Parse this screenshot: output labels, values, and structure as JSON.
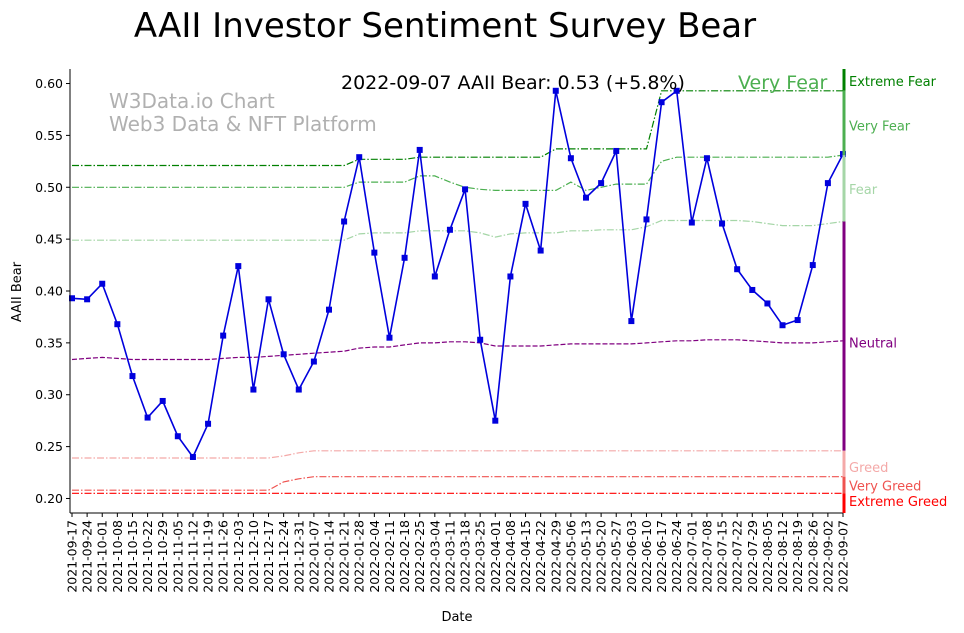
{
  "chart_data": {
    "type": "line",
    "title": "AAII Investor Sentiment Survey Bear",
    "xlabel": "Date",
    "ylabel": "AAII Bear",
    "ylim": [
      0.186,
      0.614
    ],
    "yticks": [
      "0.20",
      "0.25",
      "0.30",
      "0.35",
      "0.40",
      "0.45",
      "0.50",
      "0.55",
      "0.60"
    ],
    "watermark": [
      "W3Data.io Chart",
      "Web3 Data & NFT Platform"
    ],
    "annotation": {
      "text": "2022-09-07 AAII Bear: 0.53 (+5.8%)",
      "level": "Very Fear",
      "level_color": "#4caf50"
    },
    "x": [
      "2021-09-17",
      "2021-09-24",
      "2021-10-01",
      "2021-10-08",
      "2021-10-15",
      "2021-10-22",
      "2021-10-29",
      "2021-11-05",
      "2021-11-12",
      "2021-11-19",
      "2021-11-26",
      "2021-12-03",
      "2021-12-10",
      "2021-12-17",
      "2021-12-24",
      "2021-12-31",
      "2022-01-07",
      "2022-01-14",
      "2022-01-21",
      "2022-01-28",
      "2022-02-04",
      "2022-02-11",
      "2022-02-18",
      "2022-02-25",
      "2022-03-04",
      "2022-03-11",
      "2022-03-18",
      "2022-03-25",
      "2022-04-01",
      "2022-04-08",
      "2022-04-15",
      "2022-04-22",
      "2022-04-29",
      "2022-05-06",
      "2022-05-13",
      "2022-05-20",
      "2022-05-27",
      "2022-06-03",
      "2022-06-10",
      "2022-06-17",
      "2022-06-24",
      "2022-07-01",
      "2022-07-08",
      "2022-07-15",
      "2022-07-22",
      "2022-07-29",
      "2022-08-05",
      "2022-08-12",
      "2022-08-19",
      "2022-08-26",
      "2022-09-02",
      "2022-09-07"
    ],
    "series": [
      {
        "color": "#0000dd",
        "values": [
          0.393,
          0.392,
          0.407,
          0.368,
          0.318,
          0.278,
          0.294,
          0.26,
          0.24,
          0.272,
          0.357,
          0.424,
          0.305,
          0.392,
          0.339,
          0.305,
          0.332,
          0.382,
          0.467,
          0.529,
          0.437,
          0.355,
          0.432,
          0.536,
          0.414,
          0.459,
          0.498,
          0.353,
          0.275,
          0.414,
          0.484,
          0.439,
          0.593,
          0.528,
          0.49,
          0.504,
          0.535,
          0.371,
          0.469,
          0.582,
          0.593,
          0.466,
          0.528,
          0.465,
          0.421,
          0.401,
          0.388,
          0.367,
          0.372,
          0.425,
          0.504,
          0.532
        ]
      }
    ],
    "bands": [
      {
        "name": "Extreme Fear",
        "color": "#008000",
        "style": "dashdot",
        "values": [
          0.521,
          0.521,
          0.521,
          0.521,
          0.521,
          0.521,
          0.521,
          0.521,
          0.521,
          0.521,
          0.521,
          0.521,
          0.521,
          0.521,
          0.521,
          0.521,
          0.521,
          0.521,
          0.521,
          0.527,
          0.527,
          0.527,
          0.527,
          0.529,
          0.529,
          0.529,
          0.529,
          0.529,
          0.529,
          0.529,
          0.529,
          0.529,
          0.537,
          0.537,
          0.537,
          0.537,
          0.537,
          0.537,
          0.537,
          0.593,
          0.593,
          0.593,
          0.593,
          0.593,
          0.593,
          0.593,
          0.593,
          0.593,
          0.593,
          0.593,
          0.593,
          0.593
        ]
      },
      {
        "name": "Very Fear",
        "color": "#4caf50",
        "style": "dashdot",
        "values": [
          0.5,
          0.5,
          0.5,
          0.5,
          0.5,
          0.5,
          0.5,
          0.5,
          0.5,
          0.5,
          0.5,
          0.5,
          0.5,
          0.5,
          0.5,
          0.5,
          0.5,
          0.5,
          0.5,
          0.505,
          0.505,
          0.505,
          0.505,
          0.511,
          0.511,
          0.505,
          0.5,
          0.498,
          0.497,
          0.497,
          0.497,
          0.497,
          0.497,
          0.505,
          0.497,
          0.5,
          0.503,
          0.503,
          0.503,
          0.525,
          0.529,
          0.529,
          0.529,
          0.529,
          0.529,
          0.529,
          0.529,
          0.529,
          0.529,
          0.529,
          0.529,
          0.531
        ]
      },
      {
        "name": "Fear",
        "color": "#a5d6a7",
        "style": "dashdot",
        "values": [
          0.449,
          0.449,
          0.449,
          0.449,
          0.449,
          0.449,
          0.449,
          0.449,
          0.449,
          0.449,
          0.449,
          0.449,
          0.449,
          0.449,
          0.449,
          0.449,
          0.449,
          0.449,
          0.449,
          0.455,
          0.456,
          0.456,
          0.456,
          0.458,
          0.458,
          0.458,
          0.458,
          0.456,
          0.452,
          0.455,
          0.456,
          0.456,
          0.456,
          0.458,
          0.458,
          0.459,
          0.459,
          0.459,
          0.462,
          0.468,
          0.468,
          0.468,
          0.468,
          0.468,
          0.468,
          0.467,
          0.465,
          0.463,
          0.463,
          0.463,
          0.465,
          0.467
        ]
      },
      {
        "name": "Neutral",
        "color": "#800080",
        "style": "dashed",
        "values": [
          0.334,
          0.335,
          0.336,
          0.335,
          0.334,
          0.334,
          0.334,
          0.334,
          0.334,
          0.334,
          0.335,
          0.336,
          0.336,
          0.337,
          0.338,
          0.339,
          0.34,
          0.341,
          0.342,
          0.345,
          0.346,
          0.346,
          0.348,
          0.35,
          0.35,
          0.351,
          0.351,
          0.35,
          0.347,
          0.347,
          0.347,
          0.347,
          0.348,
          0.349,
          0.349,
          0.349,
          0.349,
          0.349,
          0.35,
          0.351,
          0.352,
          0.352,
          0.353,
          0.353,
          0.353,
          0.352,
          0.351,
          0.35,
          0.35,
          0.35,
          0.351,
          0.352
        ]
      },
      {
        "name": "Greed",
        "color": "#f4a9a8",
        "style": "dashdot",
        "values": [
          0.239,
          0.239,
          0.239,
          0.239,
          0.239,
          0.239,
          0.239,
          0.239,
          0.239,
          0.239,
          0.239,
          0.239,
          0.239,
          0.239,
          0.241,
          0.244,
          0.246,
          0.246,
          0.246,
          0.246,
          0.246,
          0.246,
          0.246,
          0.246,
          0.246,
          0.246,
          0.246,
          0.246,
          0.246,
          0.246,
          0.246,
          0.246,
          0.246,
          0.246,
          0.246,
          0.246,
          0.246,
          0.246,
          0.246,
          0.246,
          0.246,
          0.246,
          0.246,
          0.246,
          0.246,
          0.246,
          0.246,
          0.246,
          0.246,
          0.246,
          0.246,
          0.246
        ]
      },
      {
        "name": "Very Greed",
        "color": "#ef5350",
        "style": "dashdot",
        "values": [
          0.208,
          0.208,
          0.208,
          0.208,
          0.208,
          0.208,
          0.208,
          0.208,
          0.208,
          0.208,
          0.208,
          0.208,
          0.208,
          0.208,
          0.216,
          0.219,
          0.221,
          0.221,
          0.221,
          0.221,
          0.221,
          0.221,
          0.221,
          0.221,
          0.221,
          0.221,
          0.221,
          0.221,
          0.221,
          0.221,
          0.221,
          0.221,
          0.221,
          0.221,
          0.221,
          0.221,
          0.221,
          0.221,
          0.221,
          0.221,
          0.221,
          0.221,
          0.221,
          0.221,
          0.221,
          0.221,
          0.221,
          0.221,
          0.221,
          0.221,
          0.221,
          0.221
        ]
      },
      {
        "name": "Extreme Greed",
        "color": "#ff0000",
        "style": "dashdot",
        "values": [
          0.205,
          0.205,
          0.205,
          0.205,
          0.205,
          0.205,
          0.205,
          0.205,
          0.205,
          0.205,
          0.205,
          0.205,
          0.205,
          0.205,
          0.205,
          0.205,
          0.205,
          0.205,
          0.205,
          0.205,
          0.205,
          0.205,
          0.205,
          0.205,
          0.205,
          0.205,
          0.205,
          0.205,
          0.205,
          0.205,
          0.205,
          0.205,
          0.205,
          0.205,
          0.205,
          0.205,
          0.205,
          0.205,
          0.205,
          0.205,
          0.205,
          0.205,
          0.205,
          0.205,
          0.205,
          0.205,
          0.205,
          0.205,
          0.205,
          0.205,
          0.205,
          0.205
        ]
      }
    ],
    "zone_bar": [
      {
        "name": "Extreme Fear",
        "color": "#008000",
        "from": 0.593,
        "to": 0.614
      },
      {
        "name": "Very Fear",
        "color": "#4caf50",
        "from": 0.531,
        "to": 0.593
      },
      {
        "name": "Fear",
        "color": "#a5d6a7",
        "from": 0.467,
        "to": 0.531
      },
      {
        "name": "Neutral",
        "color": "#800080",
        "from": 0.246,
        "to": 0.467
      },
      {
        "name": "Greed",
        "color": "#f4a9a8",
        "from": 0.221,
        "to": 0.246
      },
      {
        "name": "Very Greed",
        "color": "#ef5350",
        "from": 0.205,
        "to": 0.221
      },
      {
        "name": "Extreme Greed",
        "color": "#ff0000",
        "from": 0.186,
        "to": 0.205
      }
    ],
    "zone_labels": [
      {
        "name": "Extreme Fear",
        "color": "#008000",
        "at": 0.602
      },
      {
        "name": "Very Fear",
        "color": "#4caf50",
        "at": 0.559
      },
      {
        "name": "Fear",
        "color": "#a5d6a7",
        "at": 0.498
      },
      {
        "name": "Neutral",
        "color": "#800080",
        "at": 0.35
      },
      {
        "name": "Greed",
        "color": "#f4a9a8",
        "at": 0.23
      },
      {
        "name": "Very Greed",
        "color": "#ef5350",
        "at": 0.212
      },
      {
        "name": "Extreme Greed",
        "color": "#ff0000",
        "at": 0.197
      }
    ]
  }
}
